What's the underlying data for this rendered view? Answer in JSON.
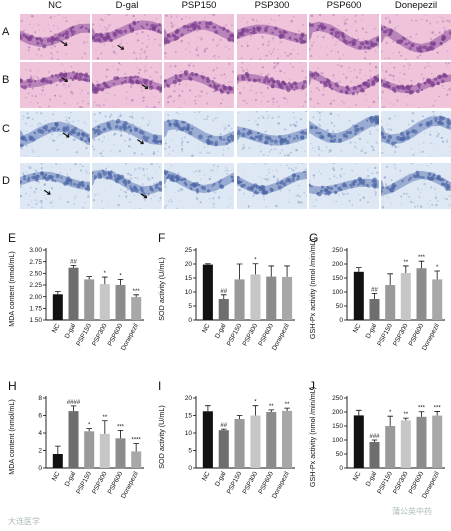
{
  "column_headers": [
    "NC",
    "D-gal",
    "PSP150",
    "PSP300",
    "PSP600",
    "Donepezil"
  ],
  "image_rows": [
    {
      "label": "A",
      "stain": "HE"
    },
    {
      "label": "B",
      "stain": "HE"
    },
    {
      "label": "C",
      "stain": "Nissl"
    },
    {
      "label": "D",
      "stain": "Nissl"
    }
  ],
  "colors": {
    "he_bg": "#efc4da",
    "he_layer": "#a86fb0",
    "nissl_bg": "#dde8f4",
    "nissl_layer": "#8398c6",
    "bars": [
      "#111111",
      "#6e6e6e",
      "#9a9a9a",
      "#c6c6c6",
      "#8c8c8c",
      "#a8a8a8"
    ]
  },
  "watermarks": [
    "大连医学",
    "蒲公英中药"
  ],
  "chart_data": [
    {
      "panel": "E",
      "type": "bar",
      "ylabel": "MDA content (nmol/mL)",
      "categories": [
        "NC",
        "D-gal",
        "PSP150",
        "PSP300",
        "PSP600",
        "Donepezil"
      ],
      "values": [
        2.05,
        2.62,
        2.37,
        2.27,
        2.25,
        1.99
      ],
      "errors": [
        0.06,
        0.05,
        0.06,
        0.15,
        0.12,
        0.05
      ],
      "significance": [
        "",
        "##",
        "",
        "*",
        "*",
        "***"
      ],
      "ylim": [
        1.5,
        3.0
      ],
      "yticks": [
        1.5,
        1.75,
        2.0,
        2.25,
        2.5,
        2.75,
        3.0
      ],
      "tick_decimals": 2
    },
    {
      "panel": "F",
      "type": "bar",
      "ylabel": "SOD activity (U/mL)",
      "categories": [
        "NC",
        "D-gal",
        "PSP150",
        "PSP300",
        "PSP600",
        "Donepezil"
      ],
      "values": [
        19.8,
        7.5,
        14.5,
        16.3,
        15.5,
        15.4
      ],
      "errors": [
        0.3,
        1.5,
        5.5,
        3.8,
        3.8,
        3.9
      ],
      "significance": [
        "",
        "##",
        "",
        "*",
        "",
        ""
      ],
      "ylim": [
        0,
        25
      ],
      "yticks": [
        0,
        5,
        10,
        15,
        20,
        25
      ],
      "tick_decimals": 0
    },
    {
      "panel": "G",
      "type": "bar",
      "ylabel": "GSH-Px activity (nmol /min/mL)",
      "categories": [
        "NC",
        "D-gal",
        "PSP150",
        "PSP300",
        "PSP600",
        "Donepezil"
      ],
      "values": [
        172,
        75,
        125,
        168,
        185,
        145
      ],
      "errors": [
        15,
        20,
        40,
        25,
        25,
        30
      ],
      "significance": [
        "",
        "##",
        "",
        "**",
        "***",
        "*"
      ],
      "ylim": [
        0,
        250
      ],
      "yticks": [
        0,
        50,
        100,
        150,
        200,
        250
      ],
      "tick_decimals": 0
    },
    {
      "panel": "H",
      "type": "bar",
      "ylabel": "MDA content (nmol/mL)",
      "categories": [
        "NC",
        "D-gal",
        "PSP150",
        "PSP300",
        "PSP600",
        "Donepezil"
      ],
      "values": [
        1.6,
        6.5,
        4.2,
        3.9,
        3.4,
        1.9
      ],
      "errors": [
        0.9,
        0.6,
        0.3,
        1.5,
        0.9,
        0.9
      ],
      "significance": [
        "",
        "####",
        "*",
        "**",
        "***",
        "****"
      ],
      "ylim": [
        0,
        8
      ],
      "yticks": [
        0,
        2,
        4,
        6,
        8
      ],
      "tick_decimals": 0
    },
    {
      "panel": "I",
      "type": "bar",
      "ylabel": "SOD activity (U/mL)",
      "categories": [
        "NC",
        "D-gal",
        "PSP150",
        "PSP300",
        "PSP600",
        "Donepezil"
      ],
      "values": [
        16.2,
        10.8,
        14.0,
        15.0,
        16.0,
        16.3
      ],
      "errors": [
        1.6,
        0.3,
        1.0,
        2.8,
        0.6,
        0.8
      ],
      "significance": [
        "",
        "##",
        "",
        "*",
        "**",
        "**"
      ],
      "ylim": [
        0,
        20
      ],
      "yticks": [
        0,
        5,
        10,
        15,
        20
      ],
      "tick_decimals": 0
    },
    {
      "panel": "J",
      "type": "bar",
      "ylabel": "GSH-Px activity (nmol /min/mL)",
      "categories": [
        "NC",
        "D-gal",
        "PSP150",
        "PSP300",
        "PSP600",
        "Donepezil"
      ],
      "values": [
        188,
        93,
        150,
        170,
        183,
        187
      ],
      "errors": [
        18,
        7,
        35,
        8,
        18,
        15
      ],
      "significance": [
        "",
        "###",
        "*",
        "**",
        "***",
        "***"
      ],
      "ylim": [
        0,
        250
      ],
      "yticks": [
        0,
        50,
        100,
        150,
        200,
        250
      ],
      "tick_decimals": 0
    }
  ]
}
